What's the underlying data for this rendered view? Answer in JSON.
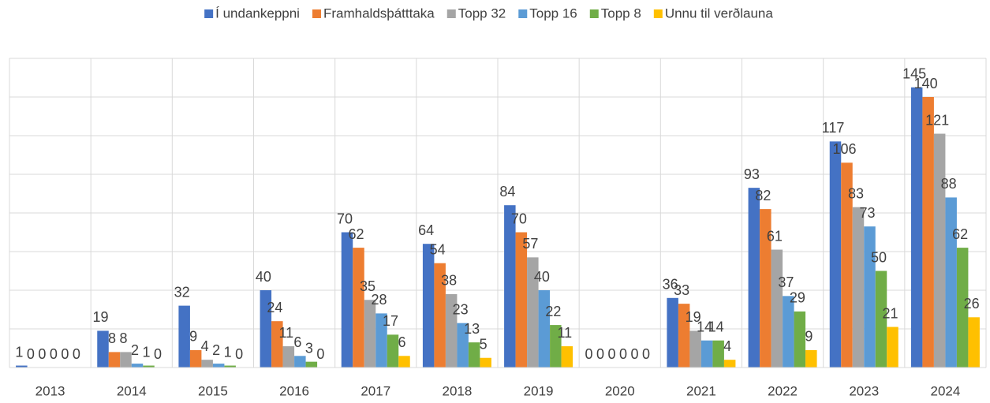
{
  "chart_data": {
    "type": "bar",
    "categories": [
      "2013",
      "2014",
      "2015",
      "2016",
      "2017",
      "2018",
      "2019",
      "2020",
      "2021",
      "2022",
      "2023",
      "2024"
    ],
    "series": [
      {
        "name": "Í undankeppni",
        "color": "#4472c4",
        "values": [
          1,
          19,
          32,
          40,
          70,
          64,
          84,
          0,
          36,
          93,
          117,
          145
        ]
      },
      {
        "name": "Framhaldsþátttaka",
        "color": "#ed7d31",
        "values": [
          0,
          8,
          9,
          24,
          62,
          54,
          70,
          0,
          33,
          82,
          106,
          140
        ]
      },
      {
        "name": "Topp 32",
        "color": "#a5a5a5",
        "values": [
          0,
          8,
          4,
          11,
          35,
          38,
          57,
          0,
          19,
          61,
          83,
          121
        ]
      },
      {
        "name": "Topp 16",
        "color": "#5b9bd5",
        "values": [
          0,
          2,
          2,
          6,
          28,
          23,
          40,
          0,
          14,
          37,
          73,
          88
        ]
      },
      {
        "name": "Topp 8",
        "color": "#70ad47",
        "values": [
          0,
          1,
          1,
          3,
          17,
          13,
          22,
          0,
          14,
          29,
          50,
          62
        ]
      },
      {
        "name": "Unnu til verðlauna",
        "color": "#ffc000",
        "values": [
          0,
          0,
          0,
          0,
          6,
          5,
          11,
          0,
          4,
          9,
          21,
          26
        ]
      }
    ],
    "ylim": [
      0,
      160
    ],
    "yticks": [
      0,
      20,
      40,
      60,
      80,
      100,
      120,
      140,
      160
    ],
    "grid": true,
    "legend": "top"
  }
}
